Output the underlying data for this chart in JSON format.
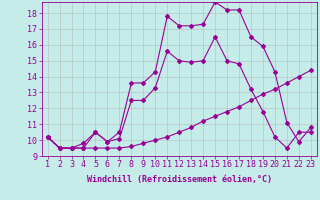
{
  "xlabel": "Windchill (Refroidissement éolien,°C)",
  "bg_color": "#c5ece8",
  "line_color": "#990099",
  "grid_color": "#b0b0b0",
  "xlim": [
    0.5,
    23.5
  ],
  "ylim": [
    9,
    18.7
  ],
  "xticks": [
    1,
    2,
    3,
    4,
    5,
    6,
    7,
    8,
    9,
    10,
    11,
    12,
    13,
    14,
    15,
    16,
    17,
    18,
    19,
    20,
    21,
    22,
    23
  ],
  "yticks": [
    9,
    10,
    11,
    12,
    13,
    14,
    15,
    16,
    17,
    18
  ],
  "line1_x": [
    1,
    2,
    3,
    4,
    5,
    6,
    7,
    8,
    9,
    10,
    11,
    12,
    13,
    14,
    15,
    16,
    17,
    18,
    19,
    20,
    21,
    22,
    23
  ],
  "line1_y": [
    10.2,
    9.5,
    9.5,
    9.5,
    9.5,
    9.5,
    9.5,
    9.6,
    9.8,
    10.0,
    10.2,
    10.5,
    10.8,
    11.2,
    11.5,
    11.8,
    12.1,
    12.5,
    12.9,
    13.2,
    13.6,
    14.0,
    14.4
  ],
  "line2_x": [
    1,
    2,
    3,
    4,
    5,
    6,
    7,
    8,
    9,
    10,
    11,
    12,
    13,
    14,
    15,
    16,
    17,
    18,
    19,
    20,
    21,
    22,
    23
  ],
  "line2_y": [
    10.2,
    9.5,
    9.5,
    9.8,
    10.5,
    9.9,
    10.5,
    13.6,
    13.6,
    14.3,
    17.8,
    17.2,
    17.2,
    17.3,
    18.7,
    18.2,
    18.2,
    16.5,
    15.9,
    14.3,
    11.1,
    9.9,
    10.8
  ],
  "line3_x": [
    1,
    2,
    3,
    4,
    5,
    6,
    7,
    8,
    9,
    10,
    11,
    12,
    13,
    14,
    15,
    16,
    17,
    18,
    19,
    20,
    21,
    22,
    23
  ],
  "line3_y": [
    10.2,
    9.5,
    9.5,
    9.5,
    10.5,
    9.9,
    10.1,
    12.5,
    12.5,
    13.3,
    15.6,
    15.0,
    14.9,
    15.0,
    16.5,
    15.0,
    14.8,
    13.2,
    11.8,
    10.2,
    9.5,
    10.5,
    10.5
  ],
  "font_size": 6,
  "marker": "D",
  "marker_size": 2.0,
  "line_width": 0.8
}
